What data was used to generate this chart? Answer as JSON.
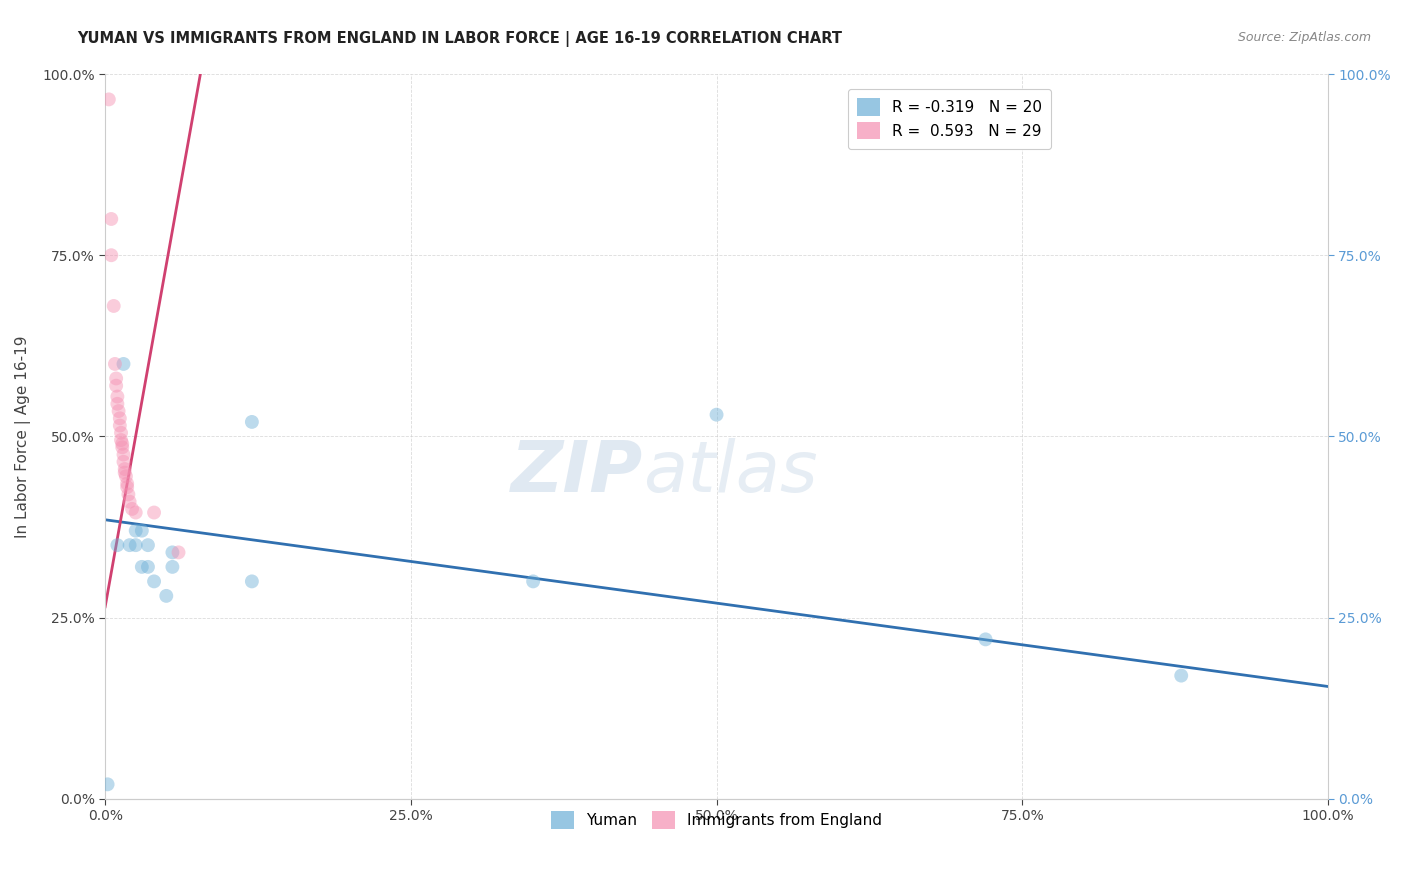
{
  "title": "YUMAN VS IMMIGRANTS FROM ENGLAND IN LABOR FORCE | AGE 16-19 CORRELATION CHART",
  "source": "Source: ZipAtlas.com",
  "ylabel": "In Labor Force | Age 16-19",
  "xlim": [
    0.0,
    1.0
  ],
  "ylim": [
    0.0,
    1.0
  ],
  "legend_r1": "R = -0.319",
  "legend_n1": "N = 20",
  "legend_r2": "R =  0.593",
  "legend_n2": "N = 29",
  "legend_label1": "Yuman",
  "legend_label2": "Immigrants from England",
  "blue_scatter_x": [
    0.002,
    0.01,
    0.015,
    0.02,
    0.025,
    0.025,
    0.03,
    0.03,
    0.035,
    0.035,
    0.04,
    0.05,
    0.055,
    0.055,
    0.12,
    0.12,
    0.35,
    0.5,
    0.72,
    0.88
  ],
  "blue_scatter_y": [
    0.02,
    0.35,
    0.6,
    0.35,
    0.37,
    0.35,
    0.37,
    0.32,
    0.35,
    0.32,
    0.3,
    0.28,
    0.34,
    0.32,
    0.52,
    0.3,
    0.3,
    0.53,
    0.22,
    0.17
  ],
  "pink_scatter_x": [
    0.003,
    0.005,
    0.005,
    0.007,
    0.008,
    0.009,
    0.009,
    0.01,
    0.01,
    0.011,
    0.012,
    0.012,
    0.013,
    0.013,
    0.014,
    0.014,
    0.015,
    0.015,
    0.016,
    0.016,
    0.017,
    0.018,
    0.018,
    0.019,
    0.02,
    0.022,
    0.025,
    0.04,
    0.06
  ],
  "pink_scatter_y": [
    0.965,
    0.8,
    0.75,
    0.68,
    0.6,
    0.58,
    0.57,
    0.555,
    0.545,
    0.535,
    0.525,
    0.515,
    0.505,
    0.495,
    0.49,
    0.485,
    0.475,
    0.465,
    0.455,
    0.45,
    0.445,
    0.435,
    0.43,
    0.42,
    0.41,
    0.4,
    0.395,
    0.395,
    0.34
  ],
  "blue_line_x": [
    0.0,
    1.0
  ],
  "blue_line_y": [
    0.385,
    0.155
  ],
  "pink_line_x": [
    0.0,
    0.08
  ],
  "pink_line_y": [
    0.265,
    1.02
  ],
  "watermark_zip": "ZIP",
  "watermark_atlas": "atlas",
  "scatter_size": 100,
  "scatter_alpha": 0.45,
  "blue_color": "#6baed6",
  "pink_color": "#f48fb1",
  "blue_line_color": "#3070b0",
  "pink_line_color": "#d04070",
  "bg_color": "#ffffff",
  "grid_color": "#cccccc",
  "right_tick_color": "#5b9bd5"
}
